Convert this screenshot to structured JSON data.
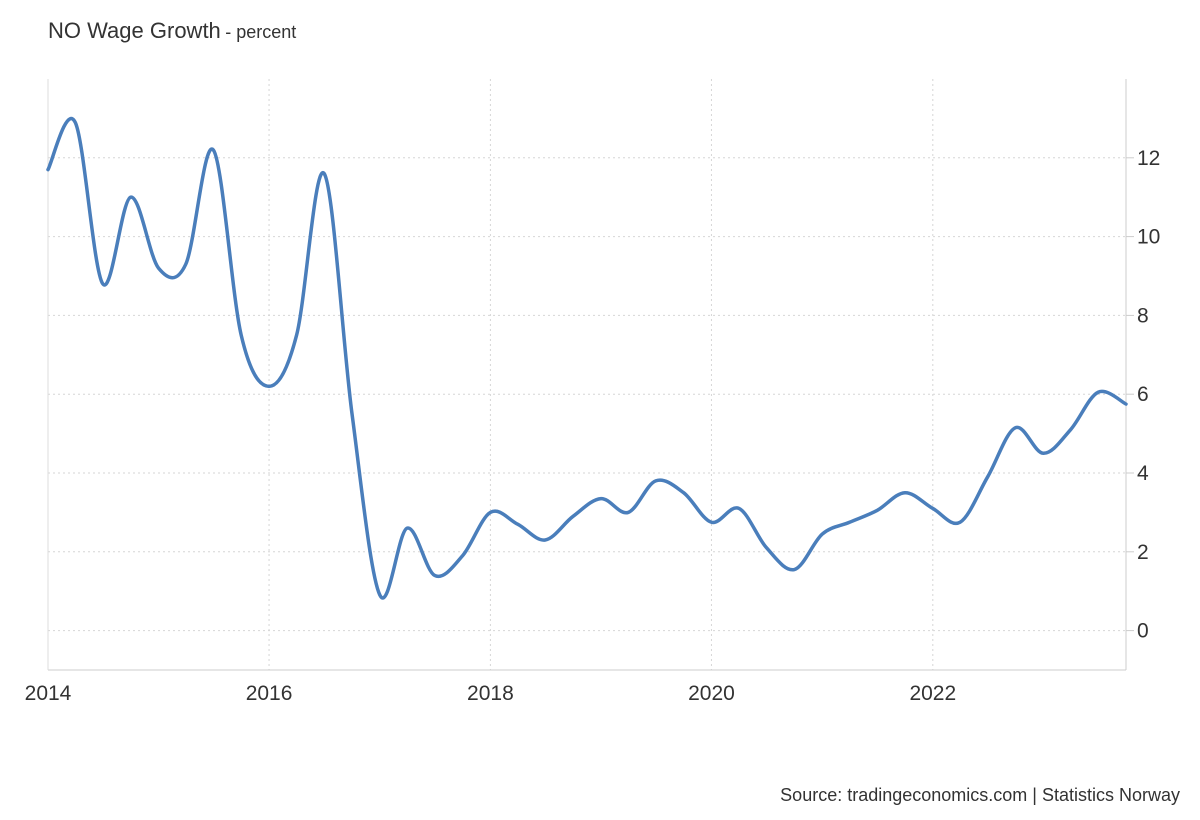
{
  "header": {
    "title": "NO Wage Growth",
    "subtitle": "- percent"
  },
  "footer": {
    "source": "Source: tradingeconomics.com | Statistics Norway"
  },
  "chart_data": {
    "type": "line",
    "title": "NO Wage Growth",
    "subtitle": "- percent",
    "xlabel": "",
    "ylabel": "",
    "x_axis_type": "date",
    "xlim": [
      "2014-01-01",
      "2023-10-01"
    ],
    "ylim": [
      -1,
      14
    ],
    "x_ticks": [
      {
        "date": "2014-01-01",
        "label": "2014"
      },
      {
        "date": "2016-01-01",
        "label": "2016"
      },
      {
        "date": "2018-01-01",
        "label": "2018"
      },
      {
        "date": "2020-01-01",
        "label": "2020"
      },
      {
        "date": "2022-01-01",
        "label": "2022"
      }
    ],
    "y_ticks": [
      0,
      2,
      4,
      6,
      8,
      10,
      12
    ],
    "y_axis_position": "right",
    "grid": true,
    "legend": "none",
    "color": "#4a7ebb",
    "series": [
      {
        "x": [
          "2014-01-01",
          "2014-04-01",
          "2014-07-01",
          "2014-10-01",
          "2015-01-01",
          "2015-04-01",
          "2015-07-01",
          "2015-10-01",
          "2016-01-01",
          "2016-04-01",
          "2016-07-01",
          "2016-10-01",
          "2017-01-01",
          "2017-04-01",
          "2017-07-01",
          "2017-10-01",
          "2018-01-01",
          "2018-04-01",
          "2018-07-01",
          "2018-10-01",
          "2019-01-01",
          "2019-04-01",
          "2019-07-01",
          "2019-10-01",
          "2020-01-01",
          "2020-04-01",
          "2020-07-01",
          "2020-10-01",
          "2021-01-01",
          "2021-04-01",
          "2021-07-01",
          "2021-10-01",
          "2022-01-01",
          "2022-04-01",
          "2022-07-01",
          "2022-10-01",
          "2023-01-01",
          "2023-04-01",
          "2023-07-01",
          "2023-10-01"
        ],
        "values": [
          11.7,
          12.9,
          8.8,
          11.0,
          9.2,
          9.3,
          12.2,
          7.5,
          6.2,
          7.5,
          11.6,
          5.5,
          0.9,
          2.6,
          1.4,
          1.9,
          3.0,
          2.7,
          2.3,
          2.9,
          3.35,
          3.0,
          3.8,
          3.5,
          2.75,
          3.1,
          2.1,
          1.55,
          2.45,
          2.75,
          3.05,
          3.5,
          3.1,
          2.75,
          3.9,
          5.15,
          4.5,
          5.1,
          6.05,
          5.75
        ]
      }
    ]
  }
}
